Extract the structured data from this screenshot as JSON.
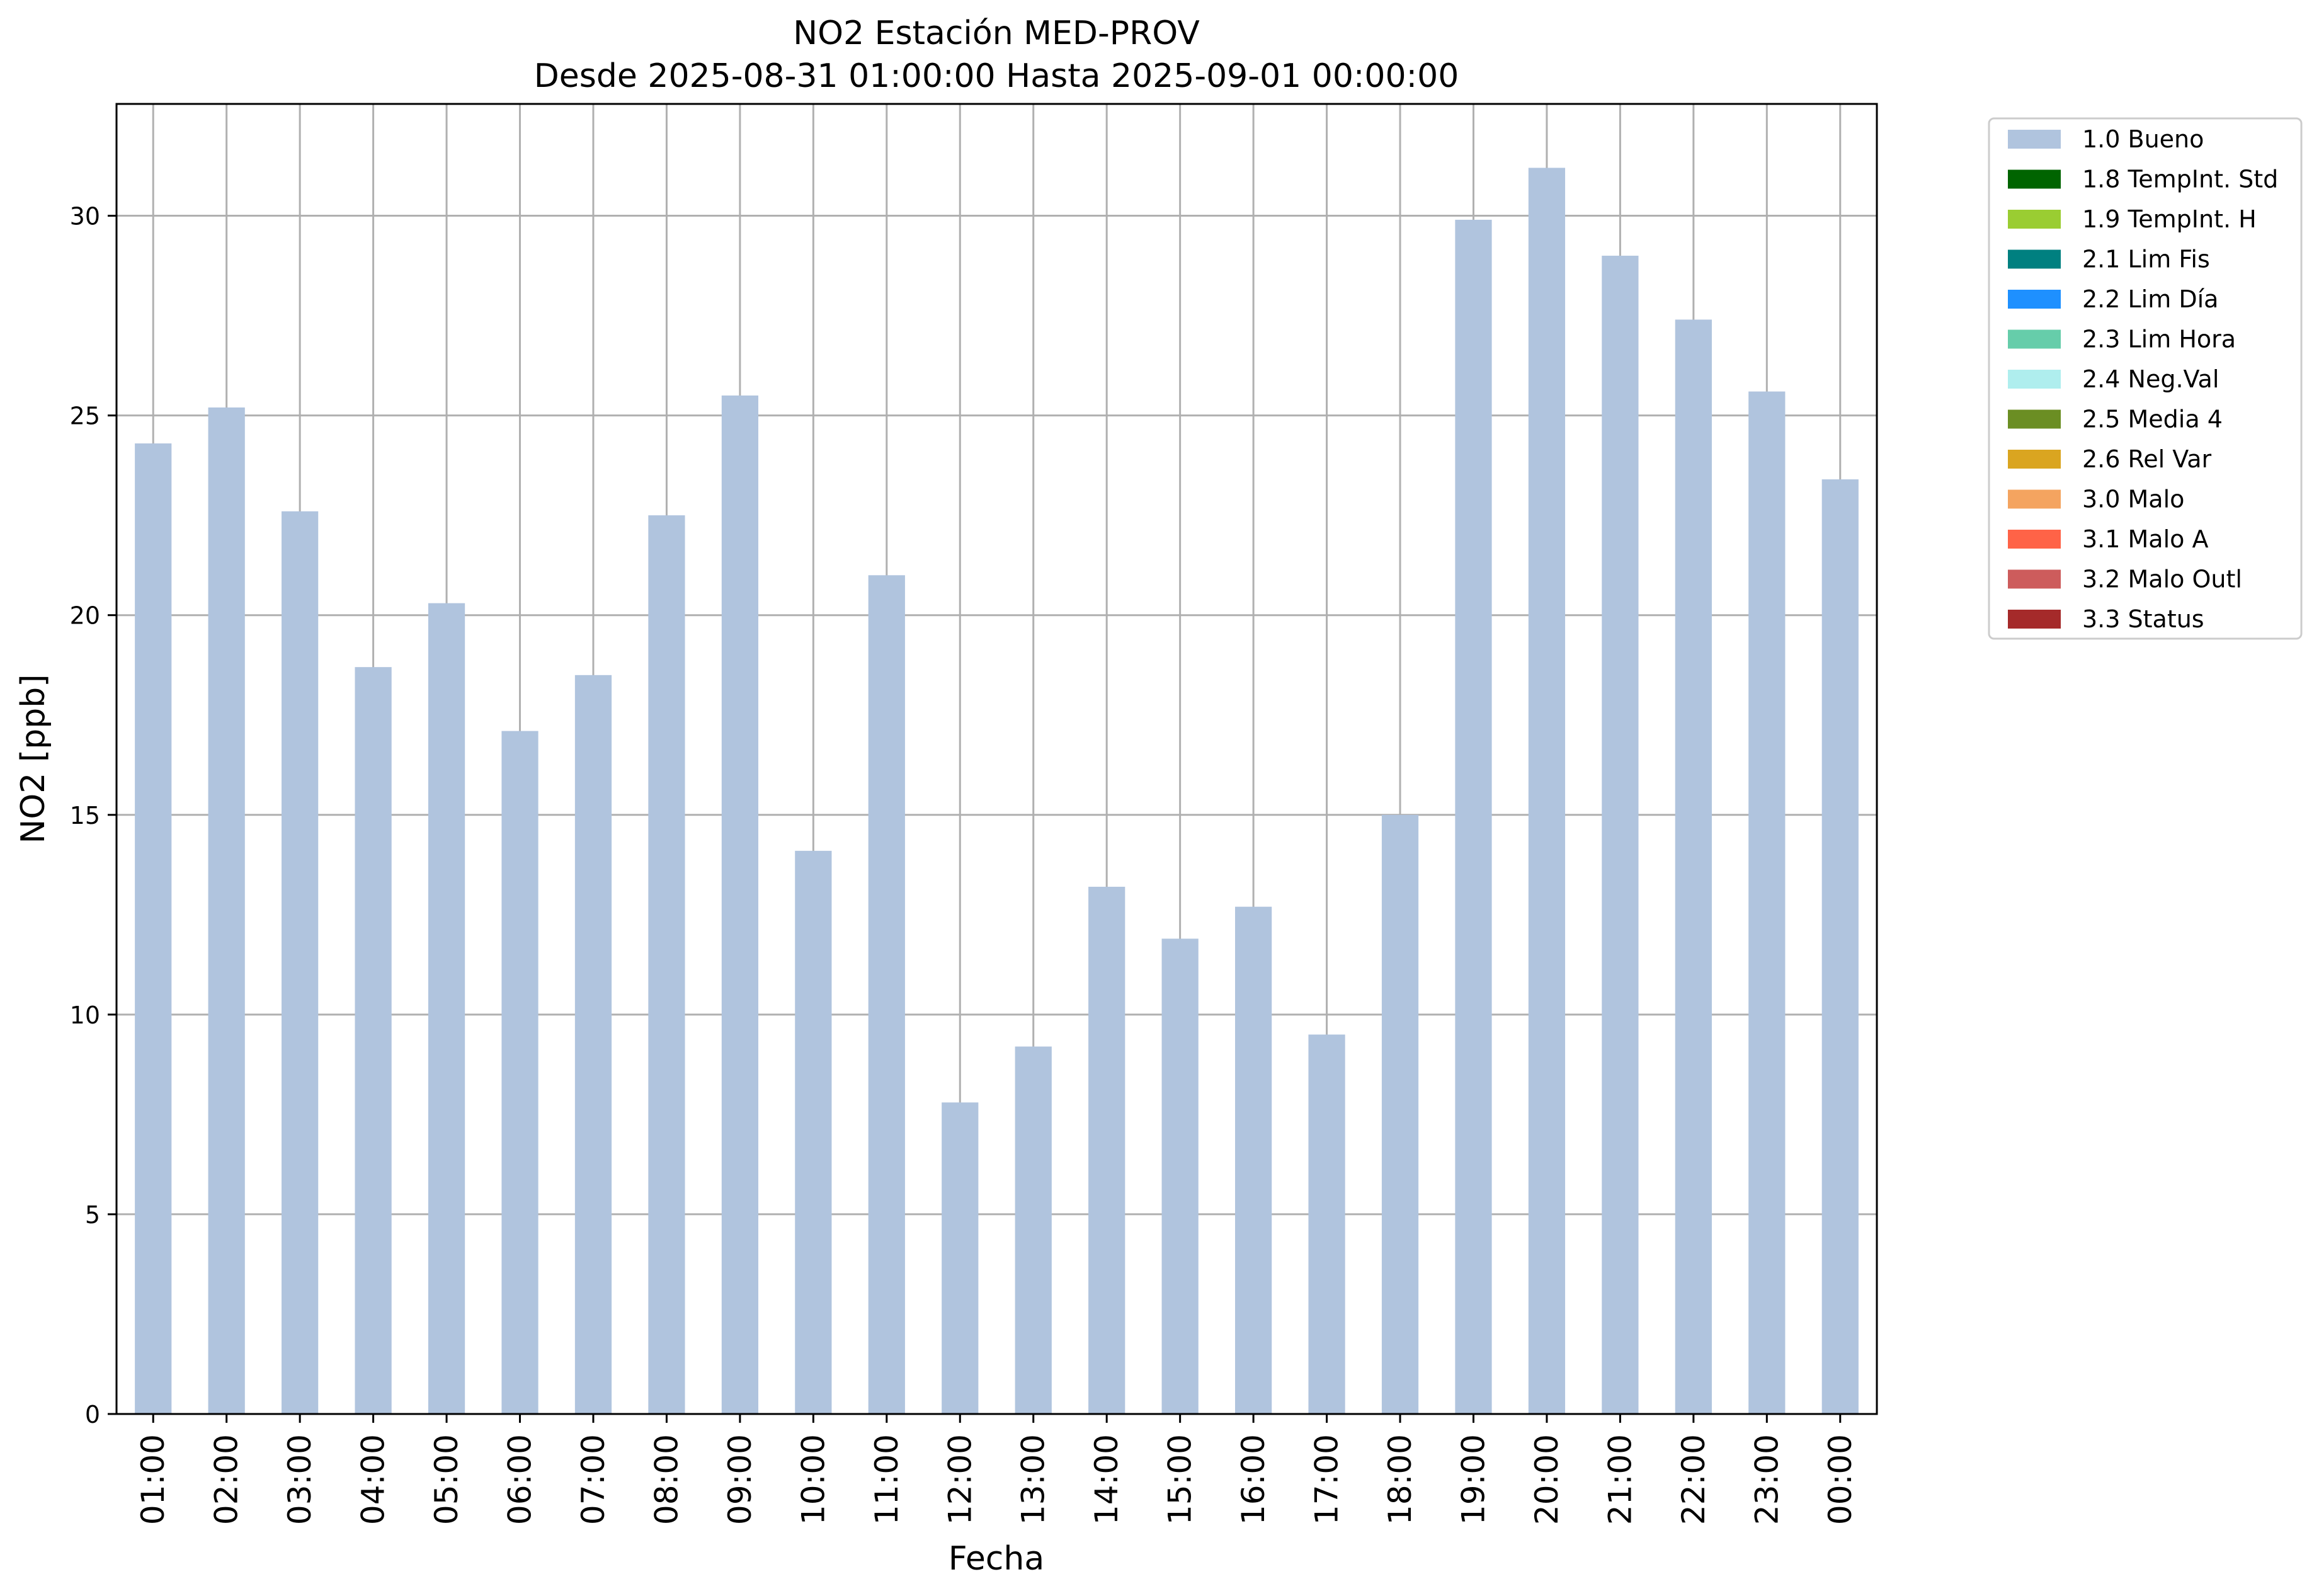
{
  "chart_data": {
    "type": "bar",
    "title": "NO2 Estación MED-PROV",
    "subtitle": "Desde 2025-08-31 01:00:00 Hasta 2025-09-01 00:00:00",
    "xlabel": "Fecha",
    "ylabel": "NO2 [ppb]",
    "ylim": [
      0,
      32.8
    ],
    "yticks": [
      0,
      5,
      10,
      15,
      20,
      25,
      30
    ],
    "grid": true,
    "legend_position": "outside-top-right",
    "categories": [
      "01:00",
      "02:00",
      "03:00",
      "04:00",
      "05:00",
      "06:00",
      "07:00",
      "08:00",
      "09:00",
      "10:00",
      "11:00",
      "12:00",
      "13:00",
      "14:00",
      "15:00",
      "16:00",
      "17:00",
      "18:00",
      "19:00",
      "20:00",
      "21:00",
      "22:00",
      "23:00",
      "00:00"
    ],
    "series": [
      {
        "name": "1.0 Bueno",
        "color": "#b0c4de",
        "values": [
          24.3,
          25.2,
          22.6,
          18.7,
          20.3,
          17.1,
          18.5,
          22.5,
          25.5,
          14.1,
          21.0,
          7.8,
          9.2,
          13.2,
          11.9,
          12.7,
          9.5,
          15.0,
          29.9,
          31.2,
          29.0,
          27.4,
          25.6,
          23.4
        ]
      }
    ],
    "legend": [
      {
        "label": "1.0 Bueno",
        "color": "#b0c4de"
      },
      {
        "label": "1.8 TempInt. Std",
        "color": "#006400"
      },
      {
        "label": "1.9 TempInt. H",
        "color": "#9acd32"
      },
      {
        "label": "2.1 Lim Fis",
        "color": "#008080"
      },
      {
        "label": "2.2 Lim Día",
        "color": "#1e90ff"
      },
      {
        "label": "2.3 Lim Hora",
        "color": "#66cdaa"
      },
      {
        "label": "2.4 Neg.Val",
        "color": "#afeeee"
      },
      {
        "label": "2.5 Media 4",
        "color": "#6b8e23"
      },
      {
        "label": "2.6 Rel Var",
        "color": "#daa520"
      },
      {
        "label": "3.0 Malo",
        "color": "#f4a460"
      },
      {
        "label": "3.1 Malo A",
        "color": "#ff6347"
      },
      {
        "label": "3.2 Malo Outl",
        "color": "#cd5c5c"
      },
      {
        "label": "3.3 Status",
        "color": "#a52a2a"
      }
    ]
  }
}
